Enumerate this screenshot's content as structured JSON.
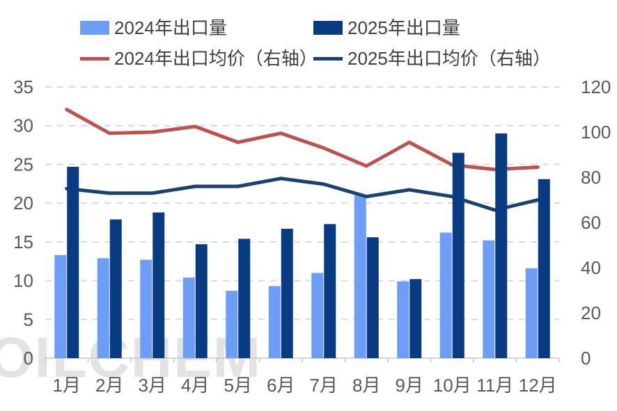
{
  "watermark": "OILCHEM",
  "legend": {
    "items": [
      {
        "label": "2024年出口量",
        "type": "bar",
        "color": "#6d9ef7"
      },
      {
        "label": "2025年出口量",
        "type": "bar",
        "color": "#073c82"
      },
      {
        "label": "2024年出口均价（右轴）",
        "type": "line",
        "color": "#c0504d"
      },
      {
        "label": "2025年出口均价（右轴）",
        "type": "line",
        "color": "#1a4173"
      }
    ]
  },
  "chart_data": {
    "type": "bar",
    "subtype": "combo-bar-line-dual-axis",
    "title": "",
    "categories": [
      "1月",
      "2月",
      "3月",
      "4月",
      "5月",
      "6月",
      "7月",
      "8月",
      "9月",
      "10月",
      "11月",
      "12月"
    ],
    "series": [
      {
        "name": "2024年出口量",
        "type": "bar",
        "axis": "left",
        "color": "#6d9ef7",
        "values": [
          13.3,
          12.9,
          12.7,
          10.4,
          8.7,
          9.3,
          11.0,
          21.0,
          9.9,
          16.2,
          15.2,
          11.6
        ]
      },
      {
        "name": "2025年出口量",
        "type": "bar",
        "axis": "left",
        "color": "#073c82",
        "values": [
          24.7,
          17.9,
          18.8,
          14.7,
          15.4,
          16.7,
          17.3,
          15.6,
          10.2,
          26.5,
          29.0,
          23.1
        ]
      },
      {
        "name": "2024年出口均价（右轴）",
        "type": "line",
        "axis": "right",
        "color": "#c0504d",
        "values": [
          110,
          99.5,
          100,
          102.5,
          95.5,
          99.5,
          93,
          85,
          95.5,
          85.5,
          83.5,
          84.5
        ]
      },
      {
        "name": "2025年出口均价（右轴）",
        "type": "line",
        "axis": "right",
        "color": "#1a4173",
        "values": [
          75,
          73,
          73,
          76,
          76,
          79.5,
          77,
          71.5,
          74.5,
          71.5,
          65.5,
          70
        ]
      }
    ],
    "left_axis": {
      "ticks": [
        0,
        5,
        10,
        15,
        20,
        25,
        30,
        35
      ],
      "range": [
        0,
        35
      ]
    },
    "right_axis": {
      "ticks": [
        0,
        20,
        40,
        60,
        80,
        100,
        120
      ],
      "range": [
        0,
        120
      ]
    },
    "grid": true,
    "grid_style": "dashed",
    "legend_position": "top",
    "axis_label_color": "#595959",
    "grid_color": "#d9d9d9"
  }
}
